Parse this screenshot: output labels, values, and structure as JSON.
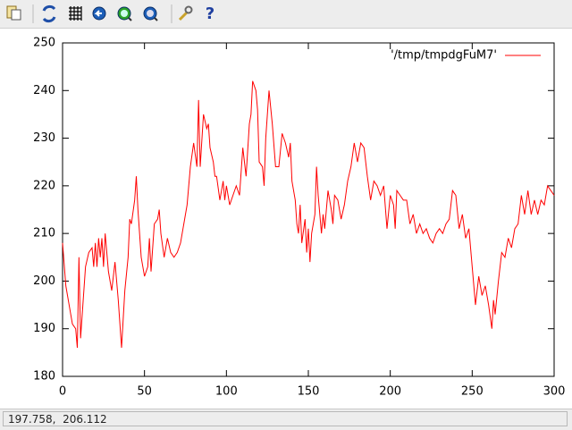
{
  "chart_data": {
    "type": "line",
    "x": [
      0,
      2,
      4,
      6,
      8,
      9,
      10,
      11,
      12,
      14,
      16,
      18,
      19,
      20,
      21,
      22,
      23,
      24,
      25,
      26,
      28,
      30,
      32,
      34,
      36,
      37,
      38,
      40,
      41,
      42,
      44,
      45,
      46,
      48,
      50,
      52,
      53,
      54,
      56,
      58,
      59,
      60,
      62,
      64,
      66,
      68,
      70,
      72,
      74,
      76,
      78,
      80,
      82,
      83,
      84,
      86,
      88,
      89,
      90,
      92,
      93,
      94,
      96,
      98,
      99,
      100,
      102,
      104,
      106,
      108,
      110,
      112,
      114,
      115,
      116,
      118,
      119,
      120,
      122,
      123,
      124,
      126,
      128,
      130,
      132,
      134,
      136,
      138,
      139,
      140,
      142,
      143,
      144,
      145,
      146,
      148,
      149,
      150,
      151,
      152,
      154,
      155,
      156,
      158,
      159,
      160,
      162,
      164,
      165,
      166,
      168,
      170,
      172,
      174,
      176,
      178,
      180,
      182,
      184,
      186,
      188,
      190,
      192,
      194,
      196,
      198,
      200,
      202,
      203,
      204,
      206,
      208,
      210,
      212,
      214,
      216,
      218,
      220,
      222,
      224,
      226,
      228,
      230,
      232,
      234,
      236,
      238,
      240,
      242,
      244,
      246,
      248,
      250,
      252,
      254,
      256,
      258,
      260,
      262,
      263,
      264,
      266,
      268,
      270,
      272,
      274,
      276,
      278,
      280,
      282,
      284,
      286,
      288,
      290,
      292,
      294,
      296,
      298,
      300
    ],
    "series": [
      {
        "name": "'/tmp/tmpdgFuM7'",
        "color": "#ff0000",
        "values": [
          208,
          199,
          195,
          191,
          190,
          186,
          205,
          188,
          193,
          203,
          206,
          207,
          203,
          208,
          203,
          209,
          205,
          209,
          203,
          210,
          202,
          198,
          204,
          196,
          186,
          192,
          198,
          205,
          213,
          212,
          217,
          222,
          215,
          205,
          201,
          203,
          209,
          202,
          212,
          213,
          215,
          210,
          205,
          209,
          206,
          205,
          206,
          208,
          212,
          216,
          224,
          229,
          224,
          238,
          224,
          235,
          232,
          233,
          228,
          225,
          222,
          222,
          217,
          221,
          217,
          220,
          216,
          218,
          220,
          218,
          228,
          222,
          233,
          235,
          242,
          240,
          236,
          225,
          224,
          220,
          230,
          240,
          233,
          224,
          224,
          231,
          229,
          226,
          229,
          221,
          217,
          212,
          210,
          216,
          208,
          213,
          206,
          211,
          204,
          210,
          214,
          224,
          218,
          210,
          214,
          211,
          219,
          215,
          212,
          218,
          217,
          213,
          216,
          221,
          224,
          229,
          225,
          229,
          228,
          222,
          217,
          221,
          220,
          218,
          220,
          211,
          218,
          216,
          211,
          219,
          218,
          217,
          217,
          212,
          214,
          210,
          212,
          210,
          211,
          209,
          208,
          210,
          211,
          210,
          212,
          213,
          219,
          218,
          211,
          214,
          209,
          211,
          203,
          195,
          201,
          197,
          199,
          195,
          190,
          196,
          193,
          200,
          206,
          205,
          209,
          207,
          211,
          212,
          218,
          214,
          219,
          214,
          217,
          214,
          217,
          216,
          220,
          219,
          218
        ]
      }
    ],
    "xlim": [
      0,
      300
    ],
    "xticks": [
      0,
      50,
      100,
      150,
      200,
      250,
      300
    ],
    "ylim": [
      180,
      250
    ],
    "yticks": [
      180,
      190,
      200,
      210,
      220,
      230,
      240,
      250
    ],
    "grid": false,
    "legend": "top-right"
  },
  "status_bar": {
    "text": "197.758,  206.112"
  }
}
